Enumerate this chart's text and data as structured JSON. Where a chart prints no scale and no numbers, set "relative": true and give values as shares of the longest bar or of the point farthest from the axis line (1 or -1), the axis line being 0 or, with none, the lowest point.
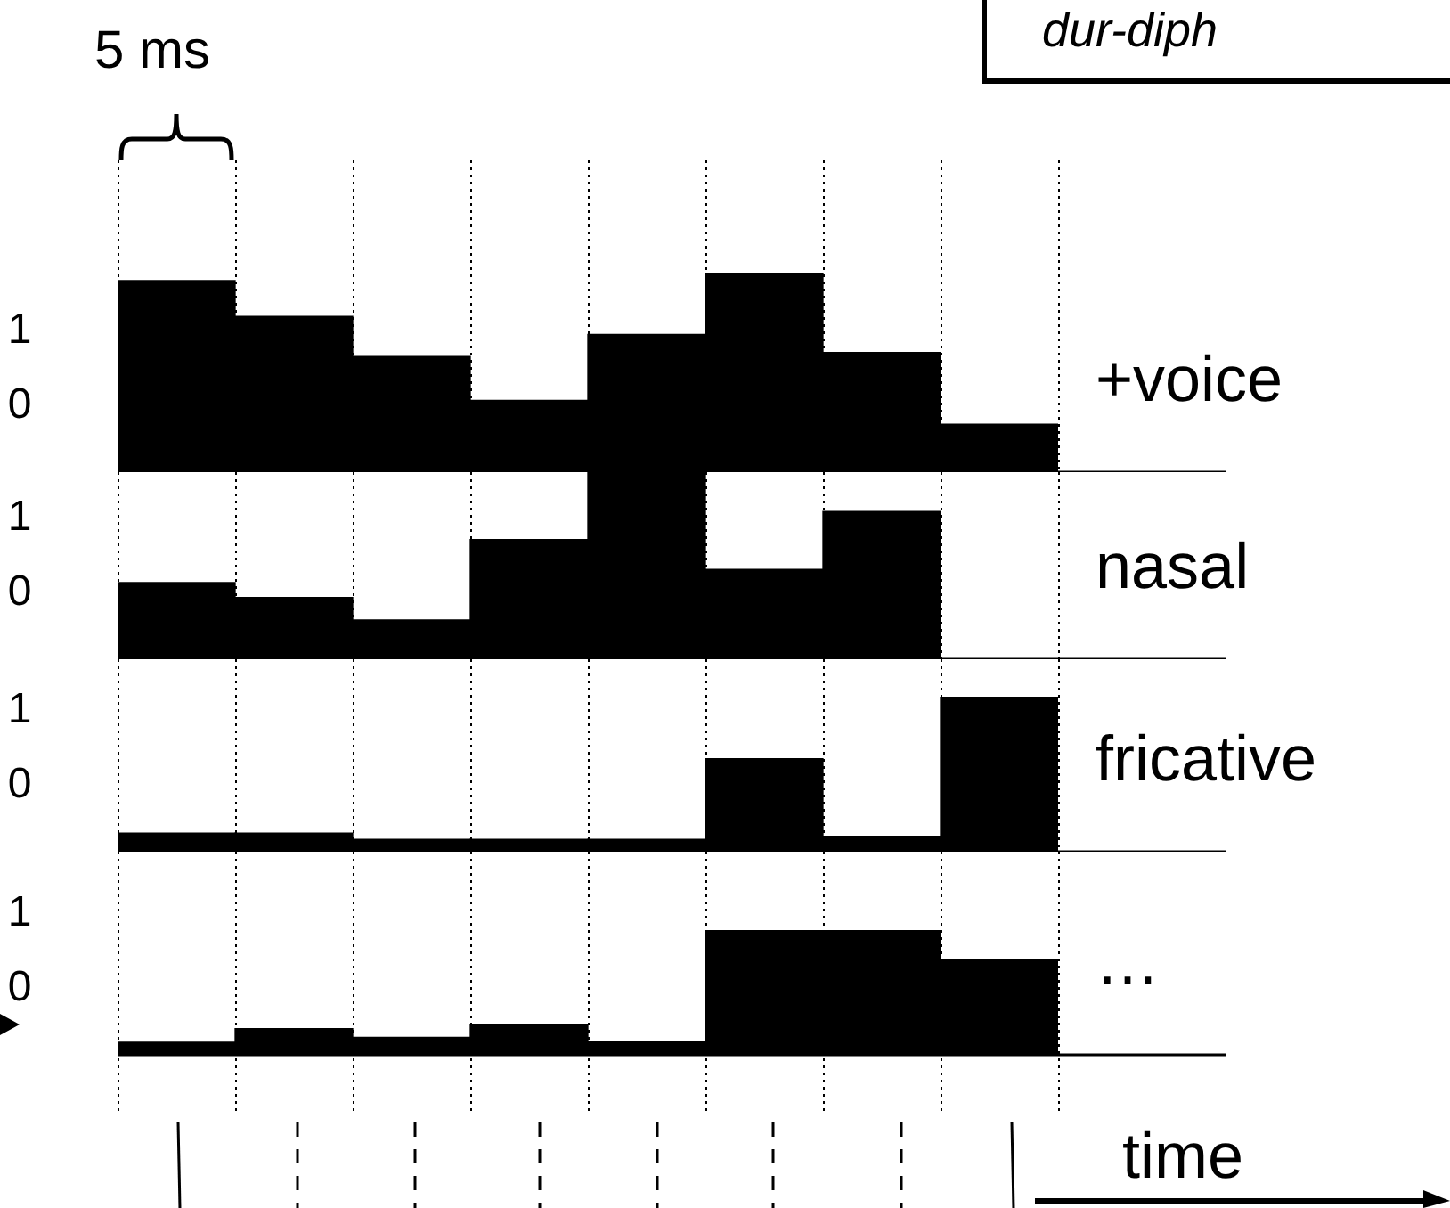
{
  "chart_data": [
    {
      "type": "bar",
      "categories": [
        null,
        null,
        null,
        null,
        null,
        null,
        null,
        null
      ],
      "relative": true,
      "grid": "x",
      "legend": false,
      "tick_labels": false,
      "annotations": [
        "1",
        "0",
        "5 ms",
        "dur-diph"
      ],
      "series": [
        {
          "name": "+voice",
          "color": "#000000",
          "values": [
            0.96,
            0.78,
            0.58,
            0.36,
            0.69,
            1,
            0.6,
            0.24
          ]
        }
      ]
    },
    {
      "type": "bar",
      "categories": [
        null,
        null,
        null,
        null,
        null,
        null,
        null,
        null
      ],
      "relative": true,
      "grid": "x",
      "legend": false,
      "tick_labels": false,
      "annotations": [
        "1",
        "0"
      ],
      "series": [
        {
          "name": "nasal",
          "color": "#000000",
          "values": [
            0.41,
            0.33,
            0.21,
            0.64,
            1,
            0.48,
            0.79,
            0
          ]
        }
      ]
    },
    {
      "type": "bar",
      "categories": [
        null,
        null,
        null,
        null,
        null,
        null,
        null,
        null
      ],
      "relative": true,
      "grid": "x",
      "legend": false,
      "tick_labels": false,
      "annotations": [
        "1",
        "0"
      ],
      "series": [
        {
          "name": "fricative",
          "color": "#000000",
          "values": [
            0.12,
            0.12,
            0.08,
            0.08,
            0.08,
            0.6,
            0.1,
            1
          ]
        }
      ]
    },
    {
      "type": "bar",
      "categories": [
        null,
        null,
        null,
        null,
        null,
        null,
        null,
        null
      ],
      "relative": true,
      "grid": "x",
      "legend": false,
      "tick_labels": false,
      "annotations": [
        "1",
        "0"
      ],
      "xlabel": "time",
      "series": [
        {
          "name": "…",
          "color": "#000000",
          "values": [
            0.1,
            0.21,
            0.14,
            0.24,
            0.11,
            1,
            1,
            0.76
          ]
        }
      ]
    }
  ]
}
